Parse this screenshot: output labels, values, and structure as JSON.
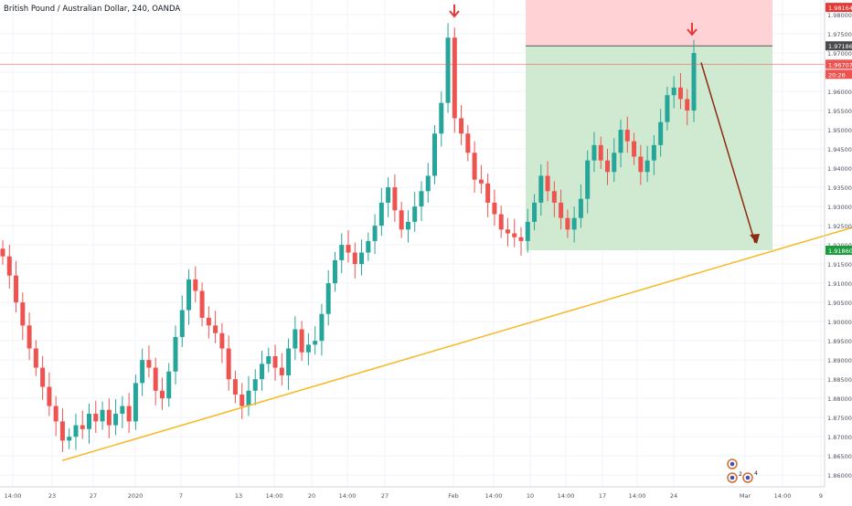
{
  "symbol": {
    "title": "British Pound / Australian Dollar, 240, OANDA"
  },
  "colors": {
    "up": "#26a69a",
    "down": "#ef5350",
    "trendline": "#f7b924",
    "arrow": "#8b2c12",
    "profit_zone": "#c8e6c9",
    "loss_zone": "#ffcdd2",
    "price_line": "#ef5350",
    "grid": "#f0f3fa",
    "axis_text": "#4c525e"
  },
  "price_axis": {
    "ticks": [
      "1.98000",
      "1.97500",
      "1.97000",
      "1.96500",
      "1.96000",
      "1.95500",
      "1.95000",
      "1.94500",
      "1.94000",
      "1.93500",
      "1.93000",
      "1.92500",
      "1.92000",
      "1.91500",
      "1.91000",
      "1.90500",
      "1.90000",
      "1.89500",
      "1.89000",
      "1.88500",
      "1.88000",
      "1.87500",
      "1.87000",
      "1.86500",
      "1.86000"
    ],
    "labels": {
      "stop": "1.98164",
      "entry": "1.97186",
      "current": "1.96707",
      "countdown": "20:26",
      "target": "1.91860"
    }
  },
  "time_axis": {
    "ticks": [
      "14:00",
      "23",
      "27",
      "2020",
      "7",
      "13",
      "14:00",
      "20",
      "14:00",
      "27",
      "Feb",
      "14:00",
      "10",
      "14:00",
      "17",
      "14:00",
      "24",
      "Mar",
      "14:00",
      "9"
    ]
  },
  "indicators": {
    "badge_values": [
      "2",
      "4"
    ]
  },
  "chart_data": {
    "type": "candlestick",
    "title": "British Pound / Australian Dollar, 240, OANDA",
    "price_range": [
      1.8585,
      1.9825
    ],
    "candles_close_sampled": [
      1.917,
      1.912,
      1.905,
      1.899,
      1.893,
      1.888,
      1.883,
      1.878,
      1.874,
      1.869,
      1.87,
      1.873,
      1.872,
      1.876,
      1.874,
      1.877,
      1.873,
      1.876,
      1.878,
      1.874,
      1.884,
      1.89,
      1.888,
      1.882,
      1.88,
      1.887,
      1.896,
      1.903,
      1.911,
      1.908,
      1.901,
      1.899,
      1.897,
      1.893,
      1.885,
      1.881,
      1.878,
      1.882,
      1.885,
      1.889,
      1.891,
      1.888,
      1.886,
      1.893,
      1.898,
      1.892,
      1.894,
      1.895,
      1.902,
      1.91,
      1.916,
      1.92,
      1.918,
      1.915,
      1.918,
      1.921,
      1.925,
      1.931,
      1.935,
      1.929,
      1.924,
      1.926,
      1.93,
      1.934,
      1.938,
      1.949,
      1.957,
      1.974,
      1.953,
      1.949,
      1.944,
      1.937,
      1.936,
      1.931,
      1.928,
      1.924,
      1.923,
      1.922,
      1.921,
      1.926,
      1.931,
      1.938,
      1.934,
      1.931,
      1.927,
      1.924,
      1.927,
      1.932,
      1.942,
      1.946,
      1.942,
      1.939,
      1.944,
      1.95,
      1.947,
      1.943,
      1.939,
      1.942,
      1.946,
      1.952,
      1.959,
      1.961,
      1.958,
      1.955,
      1.97
    ],
    "trendline": {
      "from": {
        "time": "23 Dec",
        "price": 1.8638
      },
      "to": {
        "time": "9 Mar",
        "price": 1.9245
      }
    },
    "position": {
      "type": "short",
      "entry": 1.97186,
      "stop": 1.98164,
      "target": 1.9186
    },
    "current_price": 1.96707,
    "grid": true
  }
}
